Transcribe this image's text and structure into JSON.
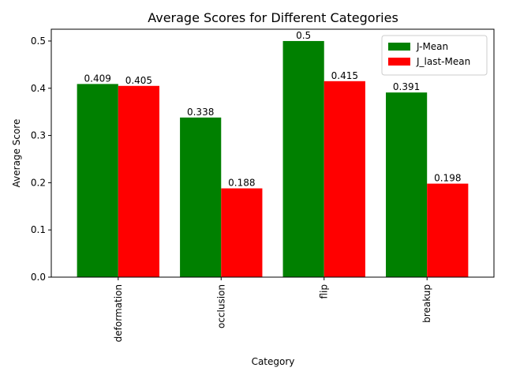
{
  "chart_data": {
    "type": "bar",
    "title": "Average Scores for Different Categories",
    "xlabel": "Category",
    "ylabel": "Average Score",
    "categories": [
      "deformation",
      "occlusion",
      "flip",
      "breakup"
    ],
    "series": [
      {
        "name": "J-Mean",
        "color": "#008000",
        "values": [
          0.409,
          0.338,
          0.5,
          0.391
        ],
        "labels": [
          "0.409",
          "0.338",
          "0.5",
          "0.391"
        ]
      },
      {
        "name": "J_last-Mean",
        "color": "#ff0000",
        "values": [
          0.405,
          0.188,
          0.415,
          0.198
        ],
        "labels": [
          "0.405",
          "0.188",
          "0.415",
          "0.198"
        ]
      }
    ],
    "ylim": [
      0,
      0.525
    ],
    "yticks": [
      0.0,
      0.1,
      0.2,
      0.3,
      0.4,
      0.5
    ],
    "ytick_labels": [
      "0.0",
      "0.1",
      "0.2",
      "0.3",
      "0.4",
      "0.5"
    ],
    "grid": false,
    "legend": "top-right"
  }
}
